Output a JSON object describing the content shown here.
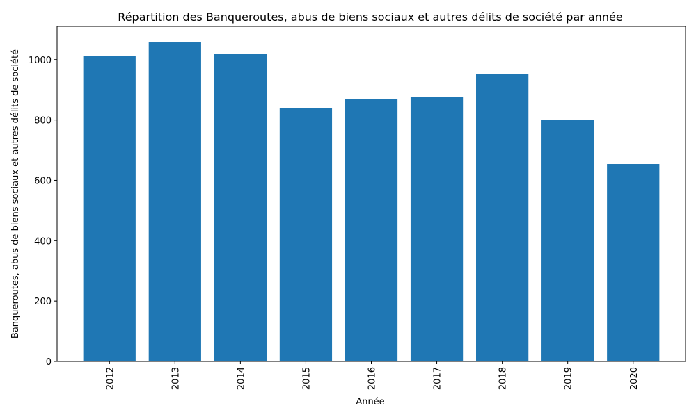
{
  "chart_data": {
    "type": "bar",
    "title": "Répartition des Banqueroutes, abus de biens sociaux et autres délits de société par année",
    "xlabel": "Année",
    "ylabel": "Banqueroutes, abus de biens sociaux et autres délits de société",
    "categories": [
      "2012",
      "2013",
      "2014",
      "2015",
      "2016",
      "2017",
      "2018",
      "2019",
      "2020"
    ],
    "values": [
      1013,
      1057,
      1018,
      840,
      870,
      877,
      953,
      801,
      654
    ],
    "ylim": [
      0,
      1110
    ],
    "yticks": [
      0,
      200,
      400,
      600,
      800,
      1000
    ],
    "xtick_rotation": "vertical",
    "grid": false,
    "legend": "none",
    "bar_color": "#1f77b4"
  }
}
